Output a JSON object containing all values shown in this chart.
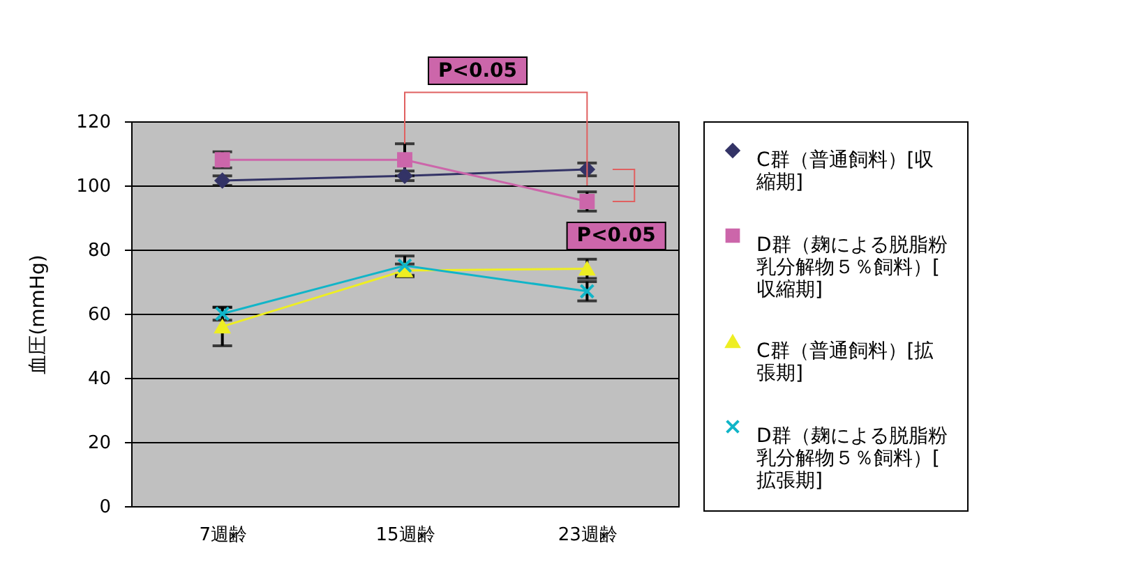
{
  "chart_data": {
    "type": "line",
    "ylabel": "血圧(mmHg)",
    "categories": [
      "7週齢",
      "15週齢",
      "23週齢"
    ],
    "ylim": [
      0,
      120
    ],
    "yticks": [
      0,
      20,
      40,
      60,
      80,
      100,
      120
    ],
    "grid": "y",
    "legend": "right",
    "line_style": "solid",
    "series": [
      {
        "name": "C群（普通飼料）[収縮期]",
        "color": "#333366",
        "marker": "diamond",
        "values": [
          101.5,
          103,
          105
        ],
        "errors": [
          1.5,
          1.5,
          2
        ]
      },
      {
        "name": "D群（麹による脱脂粉乳分解物５％飼料）[収縮期]",
        "color": "#cc66aa",
        "marker": "square",
        "values": [
          108,
          108,
          95
        ],
        "errors": [
          2.5,
          5,
          3
        ]
      },
      {
        "name": "C群（普通飼料）[拡張期]",
        "color": "#eeee22",
        "marker": "triangle",
        "values": [
          56,
          73.5,
          74
        ],
        "errors": [
          6,
          2,
          3
        ]
      },
      {
        "name": "D群（麹による脱脂粉乳分解物５％飼料）[拡張期]",
        "color": "#11b5c8",
        "marker": "cross",
        "values": [
          60,
          75,
          67
        ],
        "errors": [
          2,
          3,
          3
        ]
      }
    ],
    "annotations": [
      "P<0.05",
      "P<0.05"
    ]
  }
}
